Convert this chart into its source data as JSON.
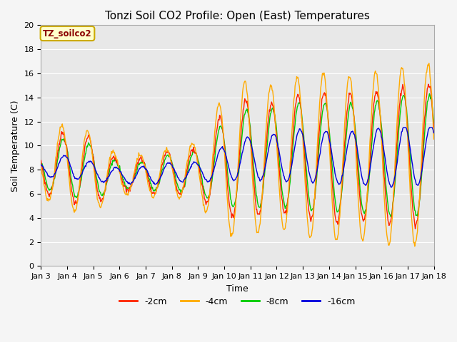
{
  "title": "Tonzi Soil CO2 Profile: Open (East) Temperatures",
  "xlabel": "Time",
  "ylabel": "Soil Temperature (C)",
  "ylim": [
    0,
    20
  ],
  "annotation": "TZ_soilco2",
  "legend_labels": [
    "-2cm",
    "-4cm",
    "-8cm",
    "-16cm"
  ],
  "legend_colors": [
    "#ff2200",
    "#ffaa00",
    "#00cc00",
    "#0000dd"
  ],
  "x_tick_labels": [
    "Jan 3",
    "Jan 4",
    "Jan 5",
    "Jan 6",
    "Jan 7",
    "Jan 8",
    "Jan 9",
    "Jan 10",
    "Jan 11",
    "Jan 12",
    "Jan 13",
    "Jan 14",
    "Jan 15",
    "Jan 16",
    "Jan 17",
    "Jan 18"
  ],
  "background_color": "#e8e8e8",
  "grid_color": "#ffffff",
  "title_fontsize": 11,
  "days": 15,
  "n_per_day": 48
}
